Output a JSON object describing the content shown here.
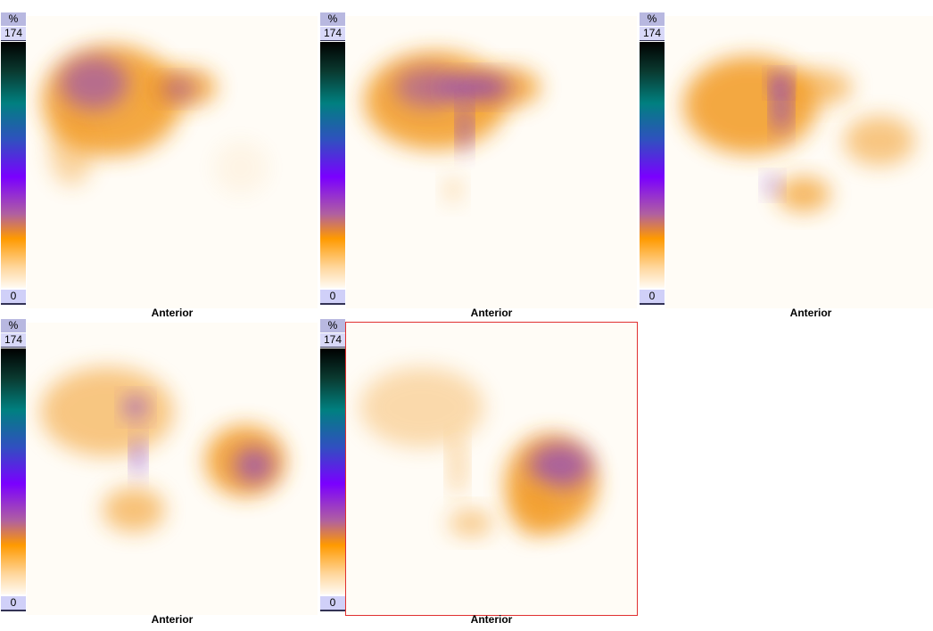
{
  "panels": [
    {
      "scale_unit": "%",
      "scale_max": "174",
      "scale_min": "0",
      "view": "Anterior"
    },
    {
      "scale_unit": "%",
      "scale_max": "174",
      "scale_min": "0",
      "view": "Anterior"
    },
    {
      "scale_unit": "%",
      "scale_max": "174",
      "scale_min": "0",
      "view": "Anterior"
    },
    {
      "scale_unit": "%",
      "scale_max": "174",
      "scale_min": "0",
      "view": "Anterior"
    },
    {
      "scale_unit": "%",
      "scale_max": "174",
      "scale_min": "0",
      "view": "Anterior",
      "selected": true
    }
  ]
}
